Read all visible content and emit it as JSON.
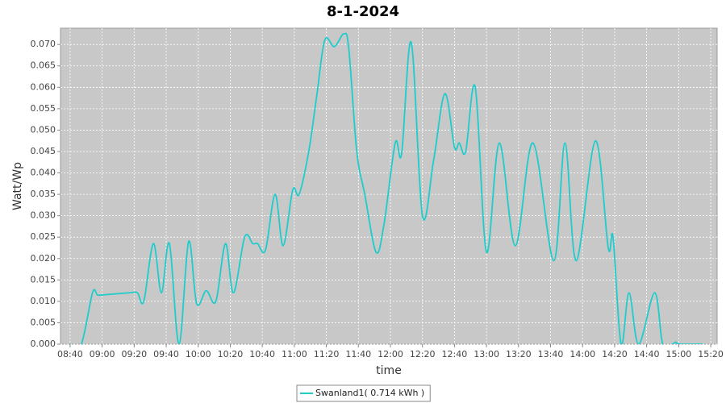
{
  "chart_data": {
    "type": "line",
    "title": "8-1-2024",
    "x_label": "time",
    "y_label": "Watt/Wp",
    "x": [
      "08:40",
      "08:47",
      "08:54",
      "08:57",
      "09:00",
      "09:17",
      "09:22",
      "09:26",
      "09:32",
      "09:37",
      "09:42",
      "09:48",
      "09:54",
      "09:59",
      "10:05",
      "10:11",
      "10:17",
      "10:22",
      "10:29",
      "10:34",
      "10:37",
      "10:42",
      "10:48",
      "10:53",
      "10:59",
      "11:03",
      "11:09",
      "11:14",
      "11:19",
      "11:25",
      "11:31",
      "11:34",
      "11:39",
      "11:44",
      "11:51",
      "11:56",
      "12:03",
      "12:07",
      "12:13",
      "12:20",
      "12:27",
      "12:34",
      "12:40",
      "12:43",
      "12:47",
      "12:53",
      "13:00",
      "13:08",
      "13:18",
      "13:29",
      "13:42",
      "13:49",
      "13:56",
      "14:08",
      "14:16",
      "14:19",
      "14:24",
      "14:29",
      "14:35",
      "14:45",
      "14:50",
      "14:56",
      "14:58",
      "15:01",
      "15:15"
    ],
    "series": [
      {
        "name": "Swanland1( 0.714 kWh )",
        "color": "#1fcccc",
        "values": [
          0,
          0,
          0.012,
          0.0115,
          0.0115,
          0.012,
          0.012,
          0.01,
          0.0235,
          0.012,
          0.0235,
          0.0,
          0.024,
          0.0095,
          0.0125,
          0.01,
          0.0235,
          0.012,
          0.025,
          0.0235,
          0.0235,
          0.022,
          0.035,
          0.023,
          0.036,
          0.035,
          0.045,
          0.058,
          0.071,
          0.0695,
          0.0725,
          0.069,
          0.045,
          0.035,
          0.0215,
          0.028,
          0.047,
          0.0445,
          0.0705,
          0.03,
          0.043,
          0.0585,
          0.046,
          0.047,
          0.045,
          0.06,
          0.0215,
          0.047,
          0.023,
          0.047,
          0.0195,
          0.047,
          0.0195,
          0.0475,
          0.0225,
          0.025,
          0.0,
          0.012,
          0.0,
          0.012,
          0.0,
          0,
          0.0005,
          0,
          0
        ]
      }
    ],
    "xlim": [
      "08:34",
      "15:24"
    ],
    "xticks": [
      "08:40",
      "09:00",
      "09:20",
      "09:40",
      "10:00",
      "10:20",
      "10:40",
      "11:00",
      "11:20",
      "11:40",
      "12:00",
      "12:20",
      "12:40",
      "13:00",
      "13:20",
      "13:40",
      "14:00",
      "14:20",
      "14:40",
      "15:00",
      "15:20"
    ],
    "ylim": [
      0,
      0.0738
    ],
    "yticks": [
      {
        "value": 0,
        "label": "0.000"
      },
      {
        "value": 0.005,
        "label": "0.005"
      },
      {
        "value": 0.01,
        "label": "0.010"
      },
      {
        "value": 0.015,
        "label": "0.015"
      },
      {
        "value": 0.02,
        "label": "0.020"
      },
      {
        "value": 0.025,
        "label": "0.025"
      },
      {
        "value": 0.03,
        "label": "0.030"
      },
      {
        "value": 0.035,
        "label": "0.035"
      },
      {
        "value": 0.04,
        "label": "0.040"
      },
      {
        "value": 0.045,
        "label": "0.045"
      },
      {
        "value": 0.05,
        "label": "0.050"
      },
      {
        "value": 0.055,
        "label": "0.055"
      },
      {
        "value": 0.06,
        "label": "0.060"
      },
      {
        "value": 0.065,
        "label": "0.065"
      },
      {
        "value": 0.07,
        "label": "0.070"
      }
    ],
    "grid": true,
    "plot_background": "#c8c8c8",
    "legend": "bottom"
  }
}
